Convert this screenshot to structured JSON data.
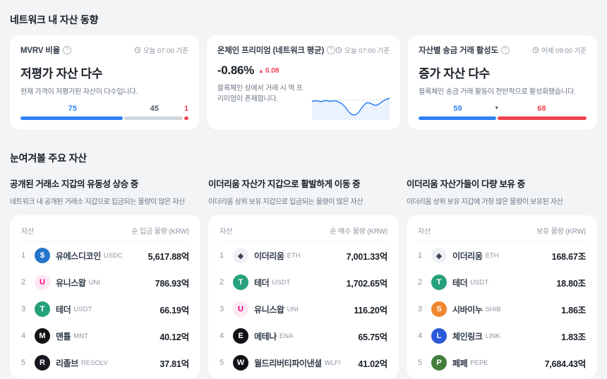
{
  "theme": {
    "blue": "#3182f6",
    "red": "#f04452",
    "gray_bar": "#d1d6db"
  },
  "network_trends": {
    "heading": "네트워크 내 자산 동향",
    "cards": [
      {
        "label": "MVRV 비율",
        "timestamp": "오늘 07:00 기준",
        "title": "저평가 자산 다수",
        "description": "현재 가격이 저평가된 자산이 다수입니다.",
        "bar": {
          "segments": [
            {
              "value": 75,
              "pct": 62,
              "color": "#3182f6",
              "label_color": "#3182f6"
            },
            {
              "value": 45,
              "pct": 35.5,
              "color": "#d1d6db",
              "label_color": "#4e5968"
            },
            {
              "value": 1,
              "pct": 2.5,
              "color": "#f04452",
              "label_color": "#f04452"
            }
          ]
        }
      },
      {
        "label": "온체인 프리미엄 (네트워크 평균)",
        "timestamp": "오늘 07:00 기준",
        "value": "-0.86%",
        "change_arrow": "▲",
        "change": "0.08",
        "description": "블록체인 상에서 거래 시 역 프리미엄이 존재합니다.",
        "sparkline": {
          "baseline": 64,
          "values": [
            60,
            63,
            58,
            64,
            59,
            63,
            57,
            48,
            26,
            14,
            20,
            42,
            58,
            52,
            45,
            55,
            66,
            70
          ]
        }
      },
      {
        "label": "자산별 송금 거래 활성도",
        "timestamp": "어제 09:00 기준",
        "title": "증가 자산 다수",
        "description": "블록체인 송금 거래 활동이 전반적으로 활성화됐습니다.",
        "bar": {
          "marker_pct": 46.5,
          "segments": [
            {
              "value": 59,
              "pct": 46.5,
              "color": "#3182f6",
              "label_color": "#3182f6"
            },
            {
              "value": 68,
              "pct": 53.5,
              "color": "#f04452",
              "label_color": "#f04452"
            }
          ]
        }
      }
    ]
  },
  "featured_assets": {
    "heading": "눈여겨볼 주요 자산",
    "columns": [
      {
        "title": "공개된 거래소 지갑의 유동성 상승 중",
        "subtitle": "네트워크 내 공개된 거래소 지갑으로 입금되는 물량이 많은 자산",
        "asset_header": "자산",
        "value_header": "순 입금 물량 (KRW)",
        "rows": [
          {
            "rank": 1,
            "name": "유에스디코인",
            "ticker": "USDC",
            "value": "5,617.88억",
            "icon": {
              "name": "usdc-icon",
              "glyph": "$",
              "bg": "#2775ca",
              "fg": "#ffffff"
            }
          },
          {
            "rank": 2,
            "name": "유니스왑",
            "ticker": "UNI",
            "value": "786.93억",
            "icon": {
              "name": "uniswap-icon",
              "glyph": "U",
              "bg": "#fce7f3",
              "fg": "#ff007a"
            }
          },
          {
            "rank": 3,
            "name": "테더",
            "ticker": "USDT",
            "value": "66.19억",
            "icon": {
              "name": "tether-icon",
              "glyph": "T",
              "bg": "#26a17b",
              "fg": "#ffffff"
            }
          },
          {
            "rank": 4,
            "name": "맨틀",
            "ticker": "MNT",
            "value": "40.12억",
            "icon": {
              "name": "mantle-icon",
              "glyph": "M",
              "bg": "#141414",
              "fg": "#ffffff"
            }
          },
          {
            "rank": 5,
            "name": "리졸브",
            "ticker": "RESOLV",
            "value": "37.81억",
            "icon": {
              "name": "resolv-icon",
              "glyph": "R",
              "bg": "#16161e",
              "fg": "#ffffff"
            }
          }
        ]
      },
      {
        "title": "이더리움 자산가 지갑으로 활발하게 이동 중",
        "subtitle": "이더리움 상위 보유 지갑으로 입금되는 물량이 많은 자산",
        "asset_header": "자산",
        "value_header": "순 매수 물량 (KRW)",
        "rows": [
          {
            "rank": 1,
            "name": "이더리움",
            "ticker": "ETH",
            "value": "7,001.33억",
            "icon": {
              "name": "ethereum-icon",
              "glyph": "◆",
              "bg": "#eef0f3",
              "fg": "#3c4257"
            }
          },
          {
            "rank": 2,
            "name": "테더",
            "ticker": "USDT",
            "value": "1,702.65억",
            "icon": {
              "name": "tether-icon",
              "glyph": "T",
              "bg": "#26a17b",
              "fg": "#ffffff"
            }
          },
          {
            "rank": 3,
            "name": "유니스왑",
            "ticker": "UNI",
            "value": "116.20억",
            "icon": {
              "name": "uniswap-icon",
              "glyph": "U",
              "bg": "#fce7f3",
              "fg": "#ff007a"
            }
          },
          {
            "rank": 4,
            "name": "에테나",
            "ticker": "ENA",
            "value": "65.75억",
            "icon": {
              "name": "ethena-icon",
              "glyph": "E",
              "bg": "#101114",
              "fg": "#ffffff"
            }
          },
          {
            "rank": 5,
            "name": "월드리버티파이낸셜",
            "ticker": "WLFI",
            "value": "41.02억",
            "icon": {
              "name": "wlfi-icon",
              "glyph": "W",
              "bg": "#101114",
              "fg": "#ffffff"
            }
          }
        ]
      },
      {
        "title": "이더리움 자산가들이 다량 보유 중",
        "subtitle": "이더리움 상위 보유 지갑에 가장 많은 물량이 보유된 자산",
        "asset_header": "자산",
        "value_header": "보유 물량 (KRW)",
        "rows": [
          {
            "rank": 1,
            "name": "이더리움",
            "ticker": "ETH",
            "value": "168.67조",
            "icon": {
              "name": "ethereum-icon",
              "glyph": "◆",
              "bg": "#eef0f3",
              "fg": "#3c4257"
            }
          },
          {
            "rank": 2,
            "name": "테더",
            "ticker": "USDT",
            "value": "18.80조",
            "icon": {
              "name": "tether-icon",
              "glyph": "T",
              "bg": "#26a17b",
              "fg": "#ffffff"
            }
          },
          {
            "rank": 3,
            "name": "시바이누",
            "ticker": "SHIB",
            "value": "1.86조",
            "icon": {
              "name": "shiba-icon",
              "glyph": "S",
              "bg": "#f0862d",
              "fg": "#ffffff"
            }
          },
          {
            "rank": 4,
            "name": "체인링크",
            "ticker": "LINK",
            "value": "1.83조",
            "icon": {
              "name": "chainlink-icon",
              "glyph": "L",
              "bg": "#2a5ada",
              "fg": "#ffffff"
            }
          },
          {
            "rank": 5,
            "name": "페페",
            "ticker": "PEPE",
            "value": "7,684.43억",
            "icon": {
              "name": "pepe-icon",
              "glyph": "P",
              "bg": "#417e3a",
              "fg": "#ffffff"
            }
          }
        ]
      }
    ]
  }
}
